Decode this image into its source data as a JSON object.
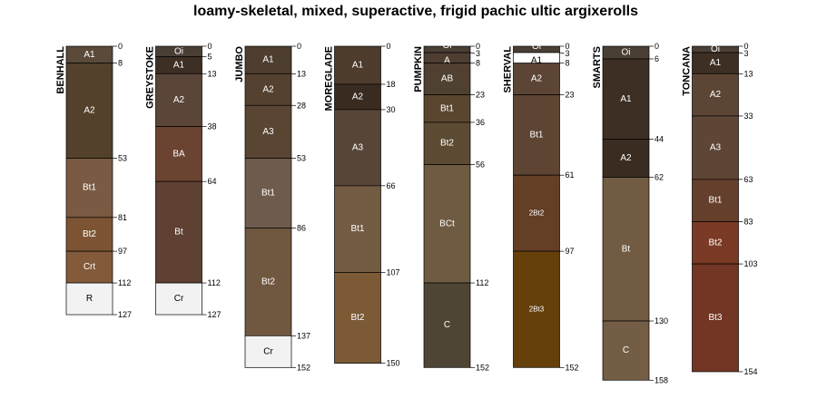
{
  "chart_data": {
    "type": "soil-profile",
    "title": "loamy-skeletal, mixed, superactive, frigid pachic ultic argixerolls",
    "depth_unit": "cm",
    "profiles": [
      {
        "name": "BENHALL",
        "horizons": [
          {
            "name": "A1",
            "top": 0,
            "bottom": 8,
            "color": "#5b4a39"
          },
          {
            "name": "A2",
            "top": 8,
            "bottom": 53,
            "color": "#54412c"
          },
          {
            "name": "Bt1",
            "top": 53,
            "bottom": 81,
            "color": "#7a5a42"
          },
          {
            "name": "Bt2",
            "top": 81,
            "bottom": 97,
            "color": "#7d5433"
          },
          {
            "name": "Crt",
            "top": 97,
            "bottom": 112,
            "color": "#835a3a"
          },
          {
            "name": "R",
            "top": 112,
            "bottom": 127,
            "color": "#f2f2f2",
            "text_color": "#000000"
          }
        ]
      },
      {
        "name": "GREYSTOKE",
        "horizons": [
          {
            "name": "Oi",
            "top": 0,
            "bottom": 5,
            "color": "#4a3f35"
          },
          {
            "name": "A1",
            "top": 5,
            "bottom": 13,
            "color": "#3d2f24"
          },
          {
            "name": "A2",
            "top": 13,
            "bottom": 38,
            "color": "#5a4538"
          },
          {
            "name": "BA",
            "top": 38,
            "bottom": 64,
            "color": "#6a4331"
          },
          {
            "name": "Bt",
            "top": 64,
            "bottom": 112,
            "color": "#5e4132"
          },
          {
            "name": "Cr",
            "top": 112,
            "bottom": 127,
            "color": "#f2f2f2",
            "text_color": "#000000"
          }
        ]
      },
      {
        "name": "JUMBO",
        "horizons": [
          {
            "name": "A1",
            "top": 0,
            "bottom": 13,
            "color": "#4e3e30"
          },
          {
            "name": "A2",
            "top": 13,
            "bottom": 28,
            "color": "#55412f"
          },
          {
            "name": "A3",
            "top": 28,
            "bottom": 53,
            "color": "#5a4533"
          },
          {
            "name": "Bt1",
            "top": 53,
            "bottom": 86,
            "color": "#6e5b4d"
          },
          {
            "name": "Bt2",
            "top": 86,
            "bottom": 137,
            "color": "#6f5740"
          },
          {
            "name": "Cr",
            "top": 137,
            "bottom": 152,
            "color": "#f2f2f2",
            "text_color": "#000000"
          }
        ]
      },
      {
        "name": "MOREGLADE",
        "horizons": [
          {
            "name": "A1",
            "top": 0,
            "bottom": 18,
            "color": "#4e3c2c"
          },
          {
            "name": "A2",
            "top": 18,
            "bottom": 30,
            "color": "#3a2b20"
          },
          {
            "name": "A3",
            "top": 30,
            "bottom": 66,
            "color": "#574637"
          },
          {
            "name": "Bt1",
            "top": 66,
            "bottom": 107,
            "color": "#735b42"
          },
          {
            "name": "Bt2",
            "top": 107,
            "bottom": 150,
            "color": "#7b5a35"
          }
        ]
      },
      {
        "name": "PUMPKIN",
        "horizons": [
          {
            "name": "Oi",
            "top": 0,
            "bottom": 3,
            "color": "#4a3f35",
            "label_offset": -4
          },
          {
            "name": "A",
            "top": 3,
            "bottom": 8,
            "color": "#4d3e31",
            "label_offset": 3
          },
          {
            "name": "AB",
            "top": 8,
            "bottom": 23,
            "color": "#4f4032"
          },
          {
            "name": "Bt1",
            "top": 23,
            "bottom": 36,
            "color": "#5a462f"
          },
          {
            "name": "Bt2",
            "top": 36,
            "bottom": 56,
            "color": "#5c4a32"
          },
          {
            "name": "BCt",
            "top": 56,
            "bottom": 112,
            "color": "#6e5b41"
          },
          {
            "name": "C",
            "top": 112,
            "bottom": 152,
            "color": "#4f4534"
          }
        ]
      },
      {
        "name": "SHERVAL",
        "horizons": [
          {
            "name": "Oi",
            "top": 0,
            "bottom": 3,
            "color": "#4a3f35",
            "label_offset": -3
          },
          {
            "name": "A1",
            "top": 3,
            "bottom": 8,
            "color": "#ffffff",
            "text_color": "#000000",
            "label_offset": 3
          },
          {
            "name": "A2",
            "top": 8,
            "bottom": 23,
            "color": "#5c4535"
          },
          {
            "name": "Bt1",
            "top": 23,
            "bottom": 61,
            "color": "#5e4433"
          },
          {
            "name": "2Bt2",
            "top": 61,
            "bottom": 97,
            "color": "#643f25",
            "small": true
          },
          {
            "name": "2Bt3",
            "top": 97,
            "bottom": 152,
            "color": "#65400b",
            "small": true
          }
        ]
      },
      {
        "name": "SMARTS",
        "horizons": [
          {
            "name": "Oi",
            "top": 0,
            "bottom": 6,
            "color": "#4a3f35"
          },
          {
            "name": "A1",
            "top": 6,
            "bottom": 44,
            "color": "#3d2f24"
          },
          {
            "name": "A2",
            "top": 44,
            "bottom": 62,
            "color": "#3a2c21"
          },
          {
            "name": "Bt",
            "top": 62,
            "bottom": 130,
            "color": "#725b43"
          },
          {
            "name": "C",
            "top": 130,
            "bottom": 158,
            "color": "#735d45"
          }
        ]
      },
      {
        "name": "TONCANA",
        "horizons": [
          {
            "name": "Oi",
            "top": 0,
            "bottom": 3,
            "color": "#4a3f35"
          },
          {
            "name": "A1",
            "top": 3,
            "bottom": 13,
            "color": "#3d2f24"
          },
          {
            "name": "A2",
            "top": 13,
            "bottom": 33,
            "color": "#5d4535"
          },
          {
            "name": "A3",
            "top": 33,
            "bottom": 63,
            "color": "#5e4535"
          },
          {
            "name": "Bt1",
            "top": 63,
            "bottom": 83,
            "color": "#643f2c"
          },
          {
            "name": "Bt2",
            "top": 83,
            "bottom": 103,
            "color": "#7b3a25"
          },
          {
            "name": "Bt3",
            "top": 103,
            "bottom": 154,
            "color": "#733624"
          }
        ]
      }
    ]
  }
}
